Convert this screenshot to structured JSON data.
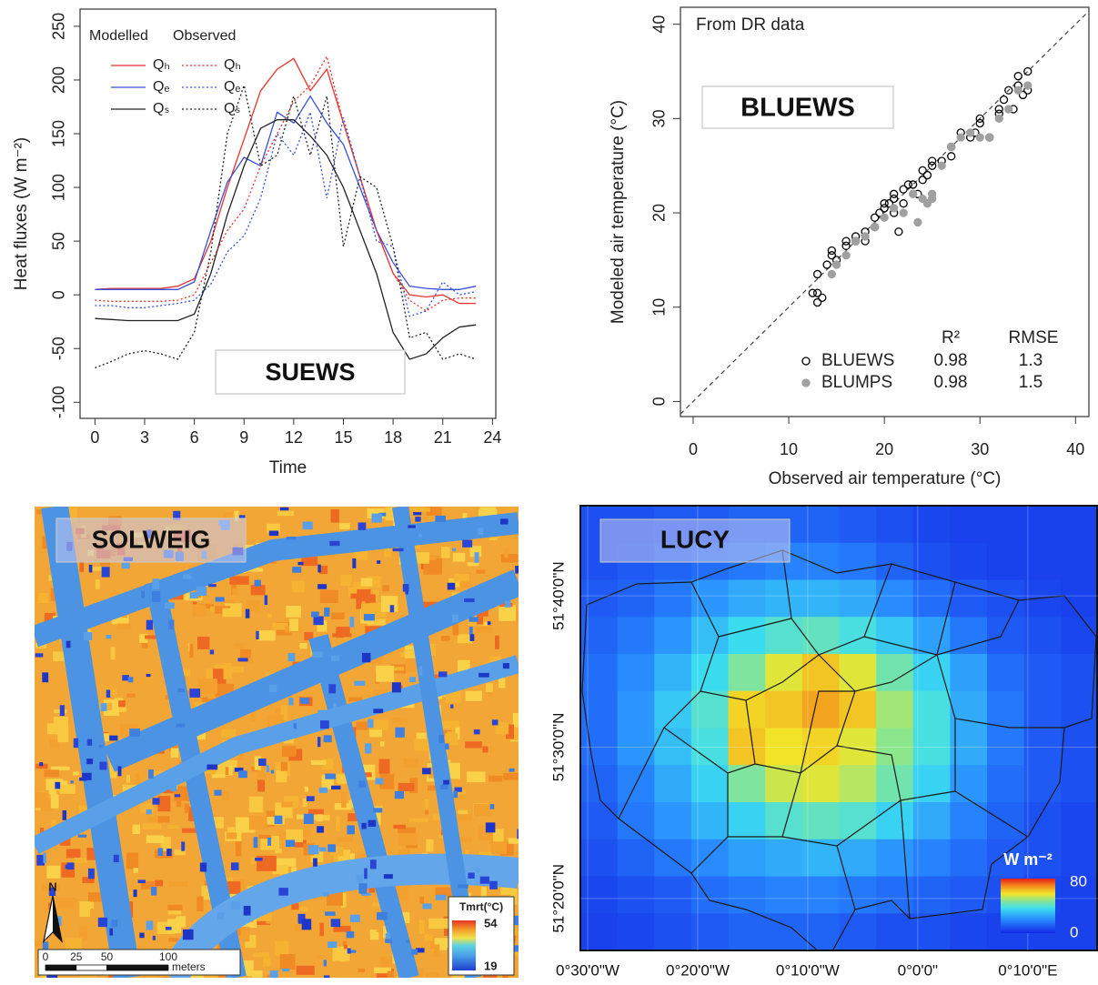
{
  "chart_data": [
    {
      "type": "line",
      "x": [
        0,
        1,
        2,
        3,
        4,
        5,
        6,
        7,
        8,
        9,
        10,
        11,
        12,
        13,
        14,
        15,
        16,
        17,
        18,
        19,
        20,
        21,
        22,
        23
      ],
      "xlim": [
        -0.9,
        24.2
      ],
      "xticks": [
        0,
        3,
        6,
        9,
        12,
        15,
        18,
        21,
        24
      ],
      "ylim": [
        -115,
        266
      ],
      "yticks": [
        -100,
        -50,
        0,
        50,
        100,
        150,
        200,
        250
      ],
      "xlabel": "Time",
      "ylabel": "Heat fluxes (W m⁻²)",
      "legend_titles": [
        "Modelled",
        "Observed"
      ],
      "annotation": "SUEWS",
      "series": [
        {
          "name": "Qₕ",
          "color": "#e8322d",
          "dash": "solid",
          "values": [
            5,
            6,
            6,
            6,
            6,
            8,
            15,
            50,
            100,
            145,
            190,
            210,
            220,
            190,
            210,
            160,
            110,
            60,
            20,
            0,
            -2,
            0,
            -8,
            -8
          ]
        },
        {
          "name": "Qₑ",
          "color": "#3a4fd8",
          "dash": "solid",
          "values": [
            5,
            5,
            5,
            5,
            5,
            5,
            12,
            60,
            105,
            128,
            120,
            170,
            160,
            185,
            160,
            140,
            100,
            60,
            30,
            8,
            6,
            5,
            5,
            8
          ]
        },
        {
          "name": "Qₛ",
          "color": "#222222",
          "dash": "solid",
          "values": [
            -22,
            -23,
            -24,
            -24,
            -24,
            -24,
            -18,
            20,
            75,
            120,
            155,
            163,
            163,
            148,
            130,
            100,
            60,
            20,
            -35,
            -60,
            -55,
            -40,
            -30,
            -28
          ]
        },
        {
          "name": "Qₕ",
          "color": "#e8322d",
          "dash": "dotted",
          "values": [
            -5,
            -6,
            -6,
            -6,
            -6,
            -5,
            0,
            30,
            60,
            80,
            120,
            150,
            180,
            195,
            222,
            160,
            110,
            60,
            20,
            -5,
            -15,
            -5,
            -3,
            -3
          ]
        },
        {
          "name": "Qₑ",
          "color": "#3a4fd8",
          "dash": "dotted",
          "values": [
            -10,
            -10,
            -12,
            -12,
            -10,
            -8,
            -5,
            10,
            40,
            55,
            90,
            150,
            130,
            170,
            90,
            165,
            110,
            50,
            45,
            -20,
            -15,
            12,
            0,
            3
          ]
        },
        {
          "name": "Qₛ",
          "color": "#222222",
          "dash": "dotted",
          "values": [
            -68,
            -62,
            -55,
            -52,
            -55,
            -60,
            -35,
            40,
            150,
            195,
            120,
            130,
            185,
            130,
            185,
            45,
            110,
            100,
            45,
            -40,
            -35,
            -60,
            -55,
            -60
          ]
        }
      ]
    },
    {
      "type": "scatter",
      "xlim": [
        -1.33,
        41.4
      ],
      "xticks": [
        0,
        10,
        20,
        30,
        40
      ],
      "ylim": [
        -1.6,
        41.8
      ],
      "yticks": [
        0,
        10,
        20,
        30,
        40
      ],
      "xlabel": "Observed air temperature (°C)",
      "ylabel": "Modeled air temperature (°C)",
      "note": "From DR data",
      "annotation": "BLUEWS",
      "identity_line": true,
      "legend_headers": [
        "R²",
        "RMSE"
      ],
      "series": [
        {
          "name": "BLUEWS",
          "marker": "open",
          "color": "#000000",
          "r2": 0.98,
          "rmse": 1.3,
          "x": [
            13,
            13,
            12.5,
            13.5,
            13,
            14,
            14.5,
            14.5,
            15,
            16,
            16,
            17,
            17,
            18,
            18,
            19,
            19,
            19.5,
            20,
            20,
            20.5,
            21,
            21,
            21,
            21.5,
            22,
            22,
            22.5,
            23,
            23.5,
            24,
            24,
            24.5,
            25,
            25,
            26,
            27,
            27,
            28,
            29,
            29.5,
            30,
            30,
            31,
            32,
            32,
            32.5,
            33,
            33.5,
            34,
            34,
            35,
            35,
            34.5
          ],
          "values": [
            10.5,
            11.5,
            11.5,
            11,
            13.5,
            14.5,
            15.5,
            16,
            15,
            16.5,
            17,
            17,
            17.5,
            18,
            17,
            18.5,
            19.5,
            20,
            20.5,
            21,
            21,
            21.5,
            22,
            20,
            18,
            21,
            22.5,
            23,
            23,
            22,
            23.5,
            24.5,
            24,
            25,
            25.5,
            25.5,
            26,
            27,
            28.5,
            28,
            28.5,
            29.5,
            30,
            28,
            30.5,
            31,
            32,
            33,
            31,
            33.5,
            34.5,
            35,
            33,
            32.5
          ]
        },
        {
          "name": "BLUMPS",
          "marker": "filled",
          "color": "#a0a0a0",
          "r2": 0.98,
          "rmse": 1.5,
          "x": [
            14.5,
            15,
            16,
            17,
            18,
            19,
            20,
            21,
            22,
            23,
            23.5,
            24,
            24.5,
            25,
            25,
            26,
            27,
            28,
            29,
            30,
            31,
            32,
            33,
            34,
            35
          ],
          "values": [
            13.5,
            14.5,
            15.5,
            17,
            17.5,
            18.5,
            19.5,
            20.5,
            20,
            22,
            19,
            21.5,
            21,
            22,
            21.5,
            25,
            27,
            28,
            28.5,
            28,
            28,
            30,
            31,
            33,
            33.5
          ]
        }
      ]
    },
    {
      "type": "map",
      "annotation": "SOLWEIG",
      "north": "N",
      "colorbar": {
        "title": "Tmrt(°C)",
        "min": 19,
        "max": 54
      },
      "scale_bar": {
        "ticks": [
          0,
          25,
          50,
          100
        ],
        "unit": "meters"
      }
    },
    {
      "type": "heatmap",
      "annotation": "LUCY",
      "xlim": [
        -0.511,
        0.273
      ],
      "xticks": [
        {
          "value": -0.5,
          "label": "0°30'0\"W"
        },
        {
          "value": -0.3333,
          "label": "0°20'0\"W"
        },
        {
          "value": -0.1667,
          "label": "0°10'0\"W"
        },
        {
          "value": 0,
          "label": "0°0'0\""
        },
        {
          "value": 0.1667,
          "label": "0°10'0\"E"
        }
      ],
      "ylim": [
        51.276,
        51.766
      ],
      "yticks": [
        {
          "value": 51.6667,
          "label": "51°40'0\"N"
        },
        {
          "value": 51.5,
          "label": "51°30'0\"N"
        },
        {
          "value": 51.3333,
          "label": "51°20'0\"N"
        }
      ],
      "colorbar": {
        "title": "W m⁻²",
        "min": 0,
        "max": 80
      },
      "values": [
        [
          8,
          8,
          10,
          10,
          12,
          12,
          12,
          10,
          8,
          6,
          5,
          5,
          5,
          5
        ],
        [
          8,
          10,
          12,
          14,
          16,
          18,
          18,
          16,
          12,
          8,
          6,
          5,
          5,
          5
        ],
        [
          10,
          12,
          16,
          22,
          26,
          28,
          28,
          26,
          20,
          14,
          10,
          8,
          6,
          5
        ],
        [
          12,
          16,
          22,
          30,
          36,
          40,
          42,
          38,
          32,
          24,
          16,
          10,
          8,
          6
        ],
        [
          14,
          20,
          28,
          36,
          46,
          56,
          62,
          56,
          44,
          34,
          24,
          14,
          10,
          8
        ],
        [
          14,
          22,
          32,
          40,
          60,
          62,
          66,
          62,
          50,
          38,
          26,
          16,
          10,
          8
        ],
        [
          14,
          22,
          30,
          38,
          62,
          58,
          60,
          56,
          48,
          38,
          26,
          16,
          10,
          8
        ],
        [
          12,
          18,
          26,
          34,
          46,
          54,
          56,
          52,
          44,
          34,
          22,
          14,
          10,
          8
        ],
        [
          10,
          16,
          22,
          28,
          34,
          40,
          42,
          40,
          34,
          26,
          18,
          12,
          8,
          6
        ],
        [
          8,
          12,
          16,
          20,
          24,
          26,
          28,
          26,
          22,
          18,
          14,
          10,
          8,
          6
        ],
        [
          6,
          8,
          10,
          14,
          16,
          18,
          18,
          16,
          14,
          12,
          10,
          8,
          6,
          5
        ],
        [
          5,
          6,
          8,
          10,
          12,
          12,
          12,
          10,
          8,
          8,
          6,
          5,
          5,
          5
        ]
      ]
    }
  ]
}
